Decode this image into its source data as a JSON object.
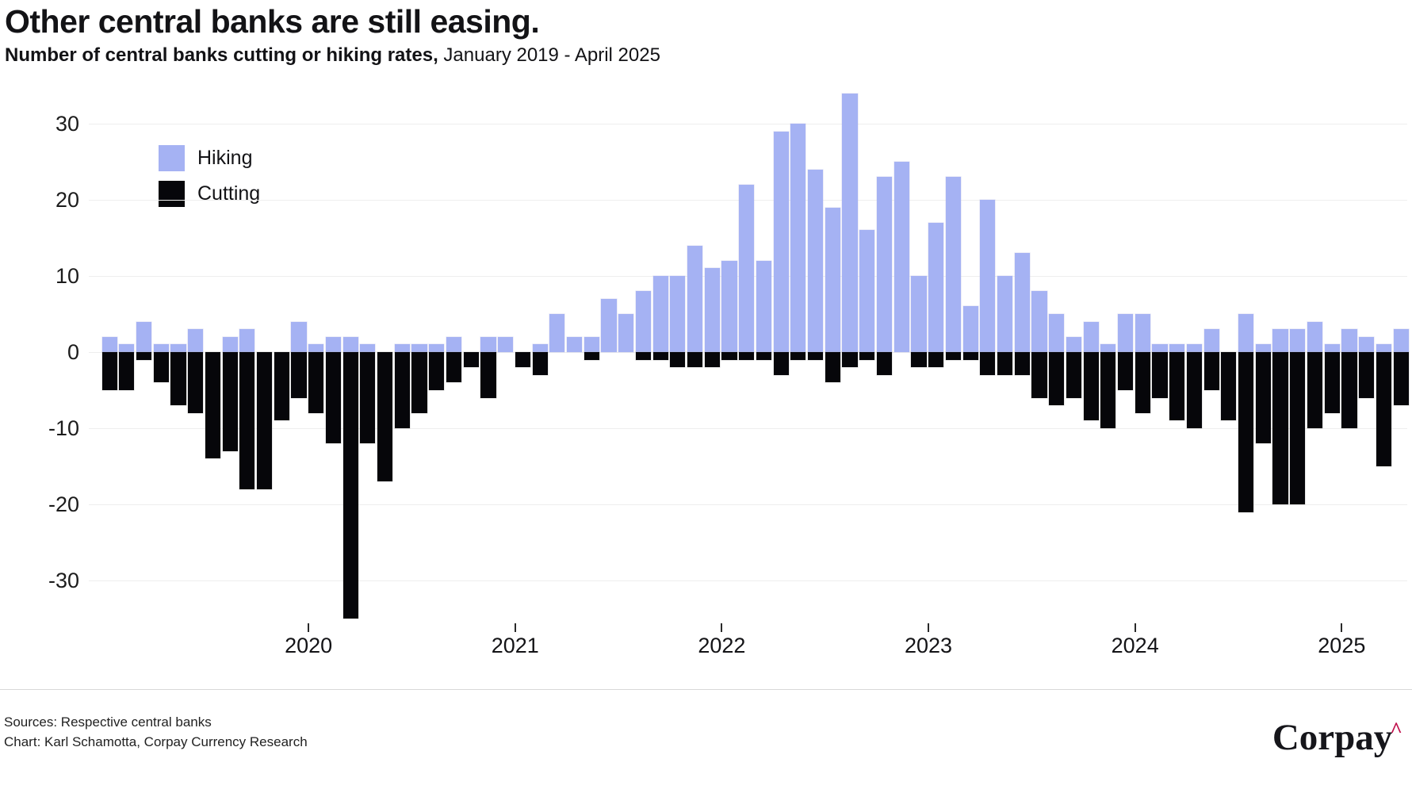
{
  "title": "Other central banks are still easing.",
  "subtitle": {
    "bold": "Number of central banks cutting or hiking rates,",
    "rest": " January 2019 - April 2025"
  },
  "legend": {
    "hiking_label": "Hiking",
    "cutting_label": "Cutting"
  },
  "colors": {
    "hiking": "#a5b2f3",
    "cutting": "#06060a",
    "grid": "#eeeeee",
    "divider": "#d8d8d8",
    "logo_text": "#16161b",
    "logo_caret": "#c0104c"
  },
  "footer": {
    "sources": "Sources: Respective central banks",
    "credit": "Chart: Karl Schamotta, Corpay Currency Research",
    "logo_text": "Corpay",
    "logo_caret": "^"
  },
  "chart_data": {
    "type": "bar",
    "variant": "diverging-stacked-monthly",
    "title": "Other central banks are still easing.",
    "subtitle": "Number of central banks cutting or hiking rates, January 2019 - April 2025",
    "xlabel": "",
    "ylabel": "",
    "ylim": [
      -36,
      35
    ],
    "grid": true,
    "legend_position": "upper-left-inside",
    "y_ticks": [
      30,
      20,
      10,
      0,
      -10,
      -20,
      -30
    ],
    "x_tick_labels": [
      "2020",
      "2021",
      "2022",
      "2023",
      "2024",
      "2025"
    ],
    "months": [
      "2019-01",
      "2019-02",
      "2019-03",
      "2019-04",
      "2019-05",
      "2019-06",
      "2019-07",
      "2019-08",
      "2019-09",
      "2019-10",
      "2019-11",
      "2019-12",
      "2020-01",
      "2020-02",
      "2020-03",
      "2020-04",
      "2020-05",
      "2020-06",
      "2020-07",
      "2020-08",
      "2020-09",
      "2020-10",
      "2020-11",
      "2020-12",
      "2021-01",
      "2021-02",
      "2021-03",
      "2021-04",
      "2021-05",
      "2021-06",
      "2021-07",
      "2021-08",
      "2021-09",
      "2021-10",
      "2021-11",
      "2021-12",
      "2022-01",
      "2022-02",
      "2022-03",
      "2022-04",
      "2022-05",
      "2022-06",
      "2022-07",
      "2022-08",
      "2022-09",
      "2022-10",
      "2022-11",
      "2022-12",
      "2023-01",
      "2023-02",
      "2023-03",
      "2023-04",
      "2023-05",
      "2023-06",
      "2023-07",
      "2023-08",
      "2023-09",
      "2023-10",
      "2023-11",
      "2023-12",
      "2024-01",
      "2024-02",
      "2024-03",
      "2024-04",
      "2024-05",
      "2024-06",
      "2024-07",
      "2024-08",
      "2024-09",
      "2024-10",
      "2024-11",
      "2024-12",
      "2025-01",
      "2025-02",
      "2025-03",
      "2025-04"
    ],
    "series": [
      {
        "name": "Hiking",
        "color": "#a5b2f3",
        "values": [
          2,
          1,
          4,
          1,
          1,
          3,
          0,
          2,
          3,
          0,
          0,
          4,
          1,
          2,
          2,
          1,
          0,
          1,
          1,
          1,
          2,
          0,
          2,
          2,
          0,
          1,
          5,
          2,
          2,
          7,
          5,
          8,
          10,
          10,
          14,
          11,
          12,
          22,
          12,
          29,
          30,
          24,
          19,
          34,
          16,
          23,
          25,
          10,
          17,
          23,
          6,
          20,
          10,
          13,
          8,
          5,
          2,
          4,
          1,
          5,
          5,
          1,
          1,
          1,
          3,
          0,
          5,
          1,
          3,
          3,
          4,
          1,
          3,
          2,
          1,
          3
        ]
      },
      {
        "name": "Cutting",
        "color": "#06060a",
        "values": [
          -5,
          -5,
          -1,
          -4,
          -7,
          -8,
          -14,
          -13,
          -18,
          -18,
          -9,
          -6,
          -8,
          -12,
          -35,
          -12,
          -17,
          -10,
          -8,
          -5,
          -4,
          -2,
          -6,
          0,
          -2,
          -3,
          0,
          0,
          -1,
          0,
          0,
          -1,
          -1,
          -2,
          -2,
          -2,
          -1,
          -1,
          -1,
          -3,
          -1,
          -1,
          -4,
          -2,
          -1,
          -3,
          0,
          -2,
          -2,
          -1,
          -1,
          -3,
          -3,
          -3,
          -6,
          -7,
          -6,
          -9,
          -10,
          -5,
          -8,
          -6,
          -9,
          -10,
          -5,
          -9,
          -21,
          -12,
          -20,
          -20,
          -10,
          -8,
          -10,
          -6,
          -15,
          -7
        ]
      }
    ]
  }
}
